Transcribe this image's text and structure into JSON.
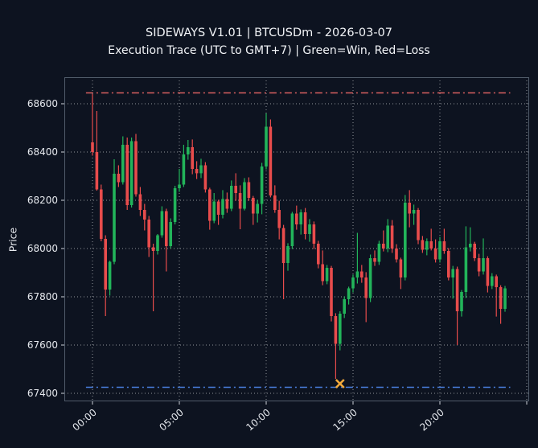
{
  "chart": {
    "title": "SIDEWAYS V1.01 | BTCUSDm - 2026-03-07",
    "subtitle": "Execution Trace (UTC to GMT+7) | Green=Win, Red=Loss",
    "ylabel": "Price"
  },
  "chart_data": {
    "type": "candlestick",
    "symbol": "BTCUSDm",
    "date": "2026-03-07",
    "interval_minutes": 15,
    "title": "SIDEWAYS V1.01 | BTCUSDm - 2026-03-07",
    "subtitle": "Execution Trace (UTC to GMT+7) | Green=Win, Red=Loss",
    "ylabel": "Price",
    "grid": true,
    "y_ticks": [
      67400,
      67600,
      67800,
      68000,
      68200,
      68400,
      68600
    ],
    "ylim": [
      67367,
      68710
    ],
    "x_tick_labels": [
      "00:00",
      "05:00",
      "10:00",
      "15:00",
      "20:00"
    ],
    "x_tick_indices": [
      0,
      20,
      40,
      60,
      80
    ],
    "extra_grid_index": 100,
    "xlim_idx": [
      -6.5,
      100.5
    ],
    "hlines": [
      {
        "name": "upper-level-line",
        "value": 68645,
        "color": "#d95f5f",
        "style": "dashdot"
      },
      {
        "name": "lower-level-line",
        "value": 67425,
        "color": "#4a80e0",
        "style": "dashdot"
      }
    ],
    "marker": {
      "name": "trade-entry-marker",
      "index": 57,
      "time": "14:15",
      "price": 67440,
      "symbol": "x",
      "color": "#f2a93b"
    },
    "colors": {
      "up": "#22b45a",
      "down": "#e84c4c",
      "background": "#0d1320",
      "grid": "#ffffff",
      "spine": "#515c6b",
      "tick": "#cfd3da",
      "text": "#e6e9ee"
    },
    "candle_columns": [
      "time",
      "open",
      "high",
      "low",
      "close"
    ],
    "candles": [
      [
        "00:00",
        68440,
        68640,
        68385,
        68400
      ],
      [
        "00:15",
        68400,
        68570,
        68240,
        68245
      ],
      [
        "00:30",
        68245,
        68265,
        68030,
        68040
      ],
      [
        "00:45",
        68040,
        68055,
        67720,
        67830
      ],
      [
        "01:00",
        67830,
        67950,
        67805,
        67945
      ],
      [
        "01:15",
        67945,
        68370,
        67935,
        68310
      ],
      [
        "01:30",
        68310,
        68345,
        68255,
        68275
      ],
      [
        "01:45",
        68275,
        68465,
        68265,
        68430
      ],
      [
        "02:00",
        68430,
        68460,
        68160,
        68180
      ],
      [
        "02:15",
        68180,
        68460,
        68170,
        68445
      ],
      [
        "02:30",
        68445,
        68475,
        68215,
        68225
      ],
      [
        "02:45",
        68225,
        68255,
        68135,
        68160
      ],
      [
        "03:00",
        68160,
        68185,
        68075,
        68120
      ],
      [
        "03:15",
        68120,
        68135,
        67965,
        68005
      ],
      [
        "03:30",
        68005,
        68020,
        67740,
        67990
      ],
      [
        "03:45",
        67990,
        68060,
        67975,
        68055
      ],
      [
        "04:00",
        68055,
        68175,
        68045,
        68155
      ],
      [
        "04:15",
        68155,
        68165,
        67905,
        68010
      ],
      [
        "04:30",
        68010,
        68125,
        68000,
        68110
      ],
      [
        "04:45",
        68110,
        68260,
        68100,
        68250
      ],
      [
        "05:00",
        68250,
        68330,
        68235,
        68265
      ],
      [
        "05:15",
        68265,
        68430,
        68255,
        68390
      ],
      [
        "05:30",
        68390,
        68450,
        68368,
        68420
      ],
      [
        "05:45",
        68420,
        68452,
        68308,
        68330
      ],
      [
        "06:00",
        68330,
        68362,
        68288,
        68312
      ],
      [
        "06:15",
        68312,
        68372,
        68292,
        68345
      ],
      [
        "06:30",
        68345,
        68358,
        68232,
        68245
      ],
      [
        "06:45",
        68245,
        68252,
        68078,
        68115
      ],
      [
        "07:00",
        68115,
        68230,
        68105,
        68195
      ],
      [
        "07:15",
        68195,
        68202,
        68098,
        68140
      ],
      [
        "07:30",
        68140,
        68242,
        68125,
        68205
      ],
      [
        "07:45",
        68205,
        68232,
        68148,
        68165
      ],
      [
        "08:00",
        68165,
        68282,
        68155,
        68260
      ],
      [
        "08:15",
        68260,
        68312,
        68198,
        68230
      ],
      [
        "08:30",
        68230,
        68262,
        68080,
        68165
      ],
      [
        "08:45",
        68165,
        68292,
        68158,
        68275
      ],
      [
        "09:00",
        68275,
        68295,
        68198,
        68210
      ],
      [
        "09:15",
        68210,
        68218,
        68098,
        68145
      ],
      [
        "09:30",
        68145,
        68202,
        68108,
        68185
      ],
      [
        "09:45",
        68185,
        68355,
        68142,
        68340
      ],
      [
        "10:00",
        68340,
        68560,
        68328,
        68505
      ],
      [
        "10:15",
        68505,
        68535,
        68212,
        68220
      ],
      [
        "10:30",
        68220,
        68262,
        68148,
        68160
      ],
      [
        "10:45",
        68160,
        68198,
        68038,
        68085
      ],
      [
        "11:00",
        68085,
        68098,
        67790,
        67940
      ],
      [
        "11:15",
        67940,
        68022,
        67908,
        68010
      ],
      [
        "11:30",
        68010,
        68152,
        67998,
        68145
      ],
      [
        "11:45",
        68145,
        68178,
        68078,
        68100
      ],
      [
        "12:00",
        68100,
        68162,
        68058,
        68150
      ],
      [
        "12:15",
        68150,
        68168,
        68038,
        68060
      ],
      [
        "12:30",
        68060,
        68122,
        68028,
        68100
      ],
      [
        "12:45",
        68100,
        68112,
        67998,
        68020
      ],
      [
        "13:00",
        68020,
        68032,
        67918,
        67935
      ],
      [
        "13:15",
        67935,
        67992,
        67848,
        67865
      ],
      [
        "13:30",
        67865,
        67932,
        67852,
        67920
      ],
      [
        "13:45",
        67920,
        67928,
        67698,
        67720
      ],
      [
        "14:00",
        67720,
        67732,
        67460,
        67605
      ],
      [
        "14:15",
        67605,
        67740,
        67578,
        67730
      ],
      [
        "14:30",
        67730,
        67802,
        67712,
        67790
      ],
      [
        "14:45",
        67790,
        67842,
        67768,
        67835
      ],
      [
        "15:00",
        67835,
        67892,
        67818,
        67880
      ],
      [
        "15:15",
        67880,
        68065,
        67855,
        67905
      ],
      [
        "15:30",
        67905,
        67932,
        67858,
        67880
      ],
      [
        "15:45",
        67880,
        67902,
        67695,
        67795
      ],
      [
        "16:00",
        67795,
        67975,
        67778,
        67960
      ],
      [
        "16:15",
        67960,
        67992,
        67928,
        67945
      ],
      [
        "16:30",
        67945,
        68032,
        67932,
        68020
      ],
      [
        "16:45",
        68020,
        68075,
        67988,
        68000
      ],
      [
        "17:00",
        68000,
        68122,
        67985,
        68095
      ],
      [
        "17:15",
        68095,
        68118,
        67982,
        68000
      ],
      [
        "17:30",
        68000,
        68018,
        67942,
        67955
      ],
      [
        "17:45",
        67955,
        67962,
        67832,
        67880
      ],
      [
        "18:00",
        67880,
        68222,
        67868,
        68190
      ],
      [
        "18:15",
        68190,
        68242,
        68088,
        68145
      ],
      [
        "18:30",
        68145,
        68182,
        68098,
        68160
      ],
      [
        "18:45",
        68160,
        68168,
        68018,
        68035
      ],
      [
        "19:00",
        68035,
        68052,
        67982,
        67995
      ],
      [
        "19:15",
        67995,
        68042,
        67972,
        68030
      ],
      [
        "19:30",
        68030,
        68082,
        67992,
        68000
      ],
      [
        "19:45",
        68000,
        68038,
        67942,
        67955
      ],
      [
        "20:00",
        67955,
        68048,
        67942,
        68030
      ],
      [
        "20:15",
        68030,
        68082,
        67978,
        67990
      ],
      [
        "20:30",
        67990,
        68002,
        67868,
        67880
      ],
      [
        "20:45",
        67880,
        67928,
        67792,
        67915
      ],
      [
        "21:00",
        67915,
        67925,
        67600,
        67740
      ],
      [
        "21:15",
        67740,
        67828,
        67718,
        67820
      ],
      [
        "21:30",
        67820,
        68092,
        67795,
        68005
      ],
      [
        "21:45",
        68005,
        68088,
        67988,
        68020
      ],
      [
        "22:00",
        68020,
        68028,
        67948,
        67960
      ],
      [
        "22:15",
        67960,
        67978,
        67885,
        67905
      ],
      [
        "22:30",
        67905,
        68042,
        67892,
        67960
      ],
      [
        "22:45",
        67960,
        67968,
        67818,
        67845
      ],
      [
        "23:00",
        67845,
        67898,
        67832,
        67885
      ],
      [
        "23:15",
        67885,
        67892,
        67718,
        67840
      ],
      [
        "23:30",
        67840,
        67848,
        67688,
        67750
      ],
      [
        "23:45",
        67750,
        67845,
        67738,
        67835
      ]
    ]
  }
}
